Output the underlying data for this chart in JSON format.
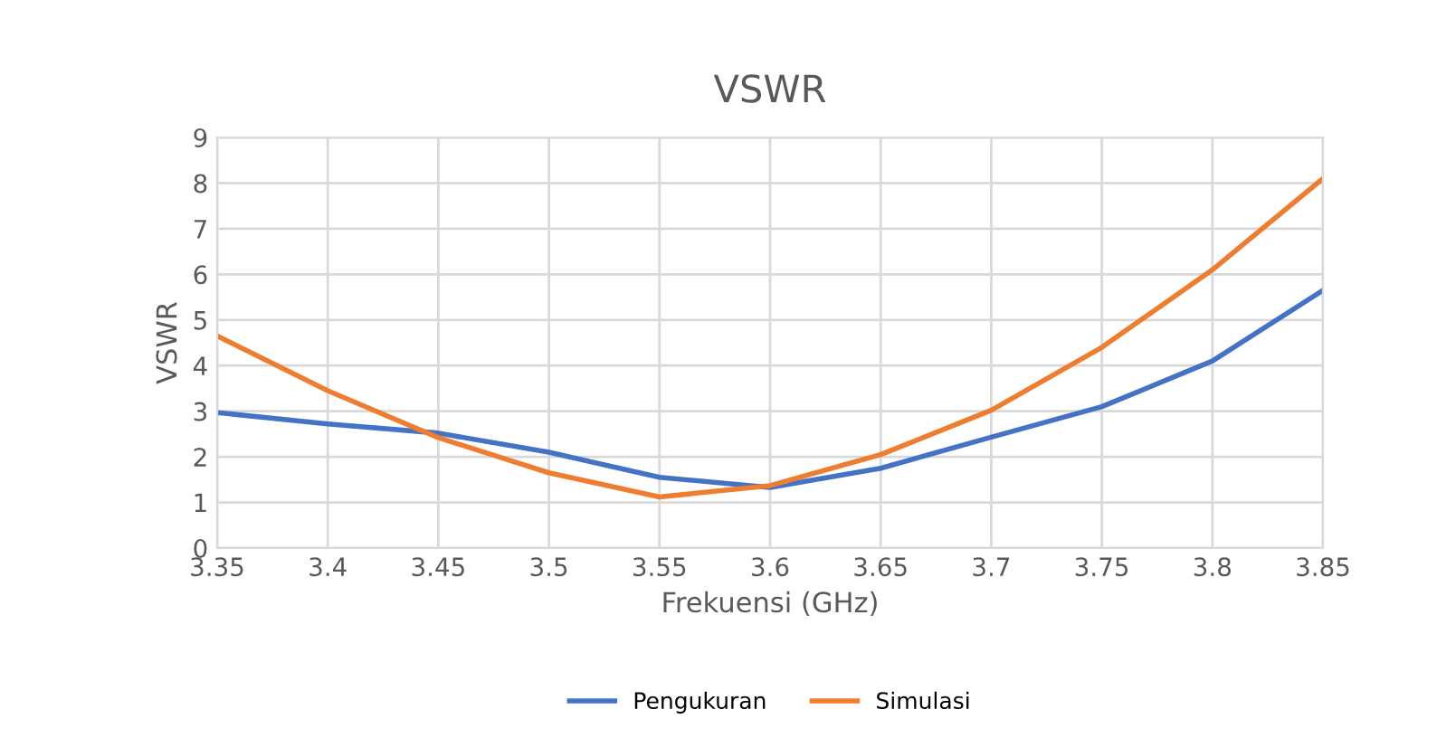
{
  "chart_data": {
    "type": "line",
    "title": "VSWR",
    "xlabel": "Frekuensi (GHz)",
    "ylabel": "VSWR",
    "x": [
      3.35,
      3.4,
      3.45,
      3.5,
      3.55,
      3.6,
      3.65,
      3.7,
      3.75,
      3.8,
      3.85
    ],
    "series": [
      {
        "name": "Pengukuran",
        "color": "#4472c4",
        "values": [
          2.97,
          2.72,
          2.52,
          2.1,
          1.55,
          1.33,
          1.75,
          2.43,
          3.1,
          4.1,
          5.65
        ]
      },
      {
        "name": "Simulasi",
        "color": "#ed7d31",
        "values": [
          4.65,
          3.45,
          2.42,
          1.65,
          1.12,
          1.37,
          2.05,
          3.02,
          4.4,
          6.1,
          8.1
        ]
      }
    ],
    "xlim": [
      3.35,
      3.85
    ],
    "xticks": [
      3.35,
      3.4,
      3.45,
      3.5,
      3.55,
      3.6,
      3.65,
      3.7,
      3.75,
      3.8,
      3.85
    ],
    "ylim": [
      0,
      9
    ],
    "yticks": [
      0,
      1,
      2,
      3,
      4,
      5,
      6,
      7,
      8,
      9
    ],
    "grid": true,
    "legend": "bottom",
    "marker": "none",
    "line_style": "solid"
  }
}
